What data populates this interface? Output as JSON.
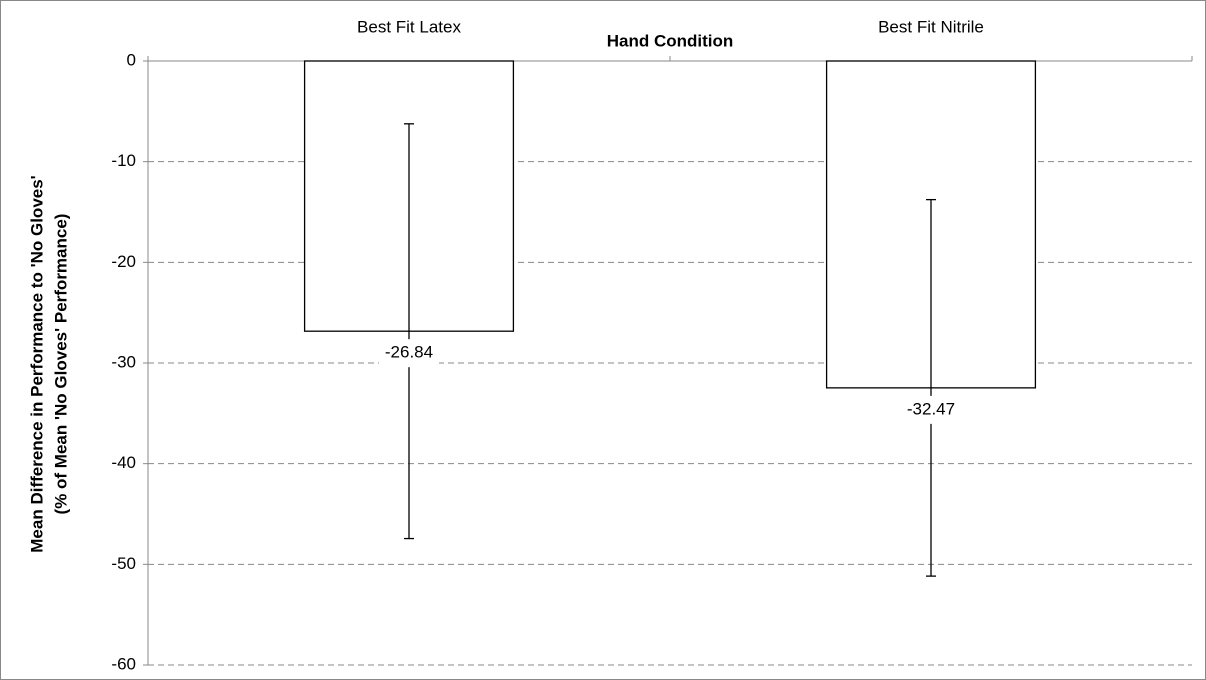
{
  "chart_data": {
    "type": "bar",
    "x_title": "Hand Condition",
    "y_title": [
      "Mean Difference in Performance to 'No Gloves'",
      "(% of Mean 'No Gloves' Performance)"
    ],
    "categories": [
      "Best Fit Latex",
      "Best Fit Nitrile"
    ],
    "values": [
      -26.84,
      -32.47
    ],
    "errors": [
      20.6,
      18.7
    ],
    "color": "#ffffff",
    "ylim": [
      -60,
      0
    ],
    "yticks": [
      0,
      -10,
      -20,
      -30,
      -40,
      -50,
      -60
    ],
    "grid": true
  }
}
